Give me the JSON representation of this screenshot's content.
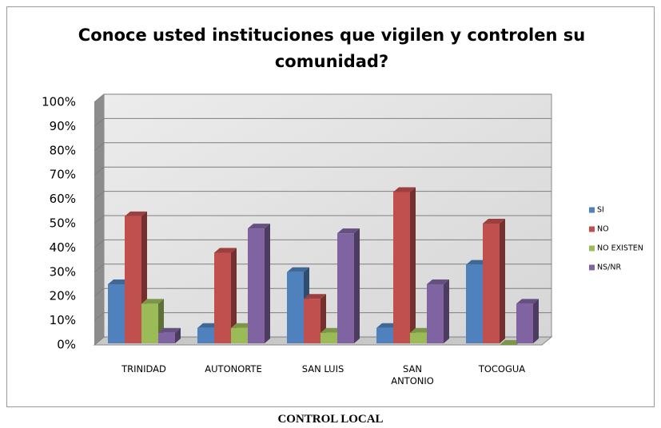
{
  "chart_data": {
    "type": "bar3d",
    "title": "Conoce usted instituciones que vigilen y controlen su comunidad?",
    "categories": [
      "TRINIDAD",
      "AUTONORTE",
      "SAN LUIS",
      "SAN ANTONIO",
      "TOCOGUA"
    ],
    "series": [
      {
        "name": "SI",
        "color": "#4f81bd",
        "values": [
          25,
          7,
          30,
          7,
          33
        ]
      },
      {
        "name": "NO",
        "color": "#c0504d",
        "values": [
          53,
          38,
          19,
          63,
          50
        ]
      },
      {
        "name": "NO EXISTEN",
        "color": "#9bbb59",
        "values": [
          17,
          7,
          5,
          5,
          0
        ]
      },
      {
        "name": "NS/NR",
        "color": "#8064a2",
        "values": [
          5,
          48,
          46,
          25,
          17
        ]
      }
    ],
    "ylim": [
      0,
      100
    ],
    "yticks": [
      {
        "value": 0,
        "label": "0%"
      },
      {
        "value": 10,
        "label": "10%"
      },
      {
        "value": 20,
        "label": "20%"
      },
      {
        "value": 30,
        "label": "30%"
      },
      {
        "value": 40,
        "label": "40%"
      },
      {
        "value": 50,
        "label": "50%"
      },
      {
        "value": 60,
        "label": "60%"
      },
      {
        "value": 70,
        "label": "70%"
      },
      {
        "value": 80,
        "label": "80%"
      },
      {
        "value": 90,
        "label": "90%"
      },
      {
        "value": 100,
        "label": "100%"
      }
    ],
    "grid": true,
    "legend": "right",
    "caption": "CONTROL LOCAL"
  }
}
